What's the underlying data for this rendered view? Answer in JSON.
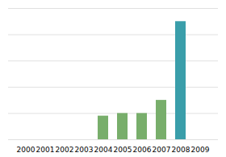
{
  "chart_data": {
    "type": "bar",
    "categories": [
      "2000",
      "2001",
      "2002",
      "2003",
      "2004",
      "2005",
      "2006",
      "2007",
      "2008",
      "2009"
    ],
    "values": [
      0,
      0,
      0,
      0,
      18,
      20,
      20,
      30,
      90,
      0
    ],
    "colors": [
      "#78ae6b",
      "#78ae6b",
      "#78ae6b",
      "#78ae6b",
      "#78ae6b",
      "#78ae6b",
      "#78ae6b",
      "#78ae6b",
      "#3a9eaa",
      "#3a9eaa"
    ],
    "ylim": [
      0,
      100
    ],
    "yticks": [
      0,
      20,
      40,
      60,
      80,
      100
    ],
    "grid": true,
    "tick_labels": "x"
  }
}
